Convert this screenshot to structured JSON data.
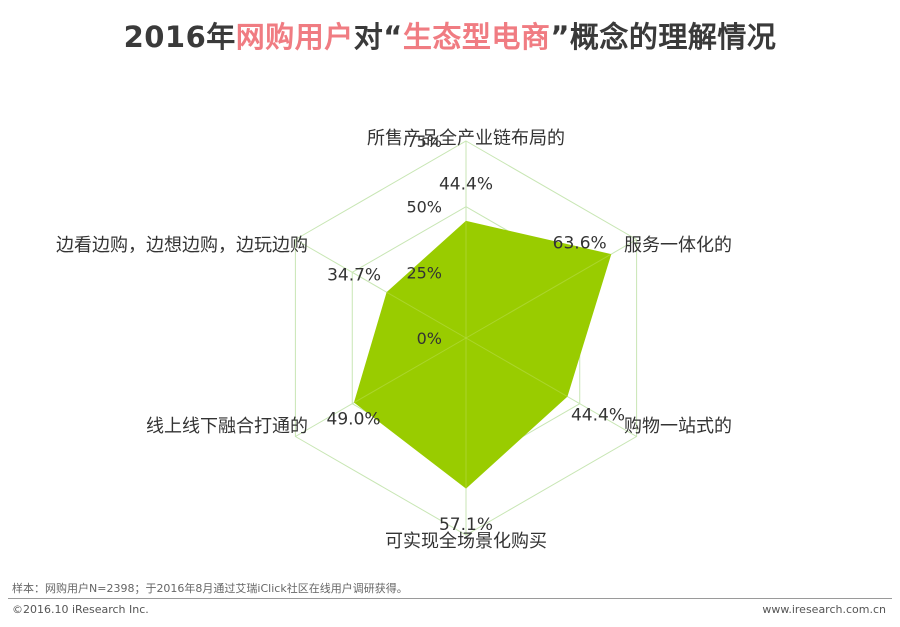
{
  "title": {
    "part1": "2016年",
    "part2": "网购用户",
    "part3": "对“",
    "part4": "生态型电商",
    "part5": "”概念的理解情况"
  },
  "colors": {
    "fill": "#99cc00",
    "grid": "#c8e6b4",
    "accent": "#f07c82"
  },
  "chart_data": {
    "type": "radar",
    "categories": [
      "所售产品全产业链布局的",
      "服务一体化的",
      "购物一站式的",
      "可实现全场景化购买",
      "线上线下融合打通的",
      "边看边购，边想边购，边玩边购"
    ],
    "values": [
      44.4,
      63.6,
      44.4,
      57.1,
      49.0,
      34.7
    ],
    "value_labels": [
      "44.4%",
      "63.6%",
      "44.4%",
      "57.1%",
      "49.0%",
      "34.7%"
    ],
    "scale_ticks": [
      0,
      25,
      50,
      75
    ],
    "scale_tick_labels": [
      "0%",
      "25%",
      "50%",
      "75%"
    ],
    "rlim": [
      0,
      75
    ],
    "grid": true
  },
  "footer": {
    "note": "样本：网购用户N=2398；于2016年8月通过艾瑞iClick社区在线用户调研获得。",
    "copyright": "©2016.10 iResearch Inc.",
    "website": "www.iresearch.com.cn"
  }
}
